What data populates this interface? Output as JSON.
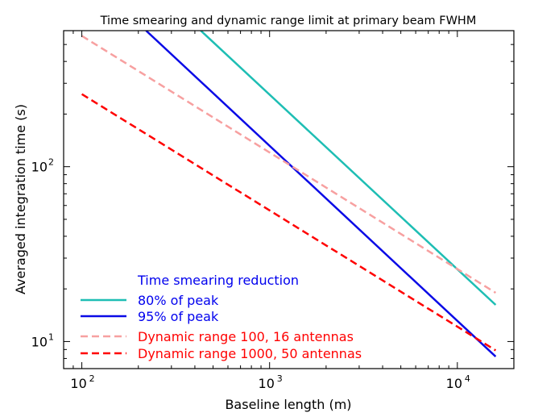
{
  "chart_data": {
    "type": "line",
    "title": "Time smearing and dynamic range limit at primary beam FWHM",
    "xlabel": "Baseline length (m)",
    "ylabel": "Averaged integration time (s)",
    "xscale": "log",
    "yscale": "log",
    "xlim": [
      80,
      20000
    ],
    "ylim": [
      7,
      600
    ],
    "x_ticks": [
      {
        "value": 100,
        "base": "10",
        "exp": "2"
      },
      {
        "value": 1000,
        "base": "10",
        "exp": "3"
      },
      {
        "value": 10000,
        "base": "10",
        "exp": "4"
      }
    ],
    "y_ticks": [
      {
        "value": 10,
        "base": "10",
        "exp": "1"
      },
      {
        "value": 100,
        "base": "10",
        "exp": "2"
      }
    ],
    "legend_position": "lower-left",
    "legend_title": "Time smearing reduction",
    "legend_title_color": "#0000ee",
    "series": [
      {
        "name": "80% of peak",
        "color": "#1ebeb4",
        "dash": "solid",
        "label_color": "#0000ee",
        "points": [
          [
            430,
            600
          ],
          [
            16000,
            16.2
          ]
        ]
      },
      {
        "name": "95% of peak",
        "color": "#0a0ae6",
        "dash": "solid",
        "label_color": "#0000ee",
        "points": [
          [
            220,
            600
          ],
          [
            16000,
            8.2
          ]
        ]
      },
      {
        "name": "Dynamic range 100, 16 antennas",
        "color": "#f7a0a0",
        "dash": "dashed",
        "label_color": "#ff0000",
        "points": [
          [
            100,
            560
          ],
          [
            16000,
            19
          ]
        ]
      },
      {
        "name": "Dynamic range 1000, 50 antennas",
        "color": "#ff0000",
        "dash": "dashed",
        "label_color": "#ff0000",
        "points": [
          [
            100,
            260
          ],
          [
            16000,
            8.9
          ]
        ]
      }
    ]
  }
}
